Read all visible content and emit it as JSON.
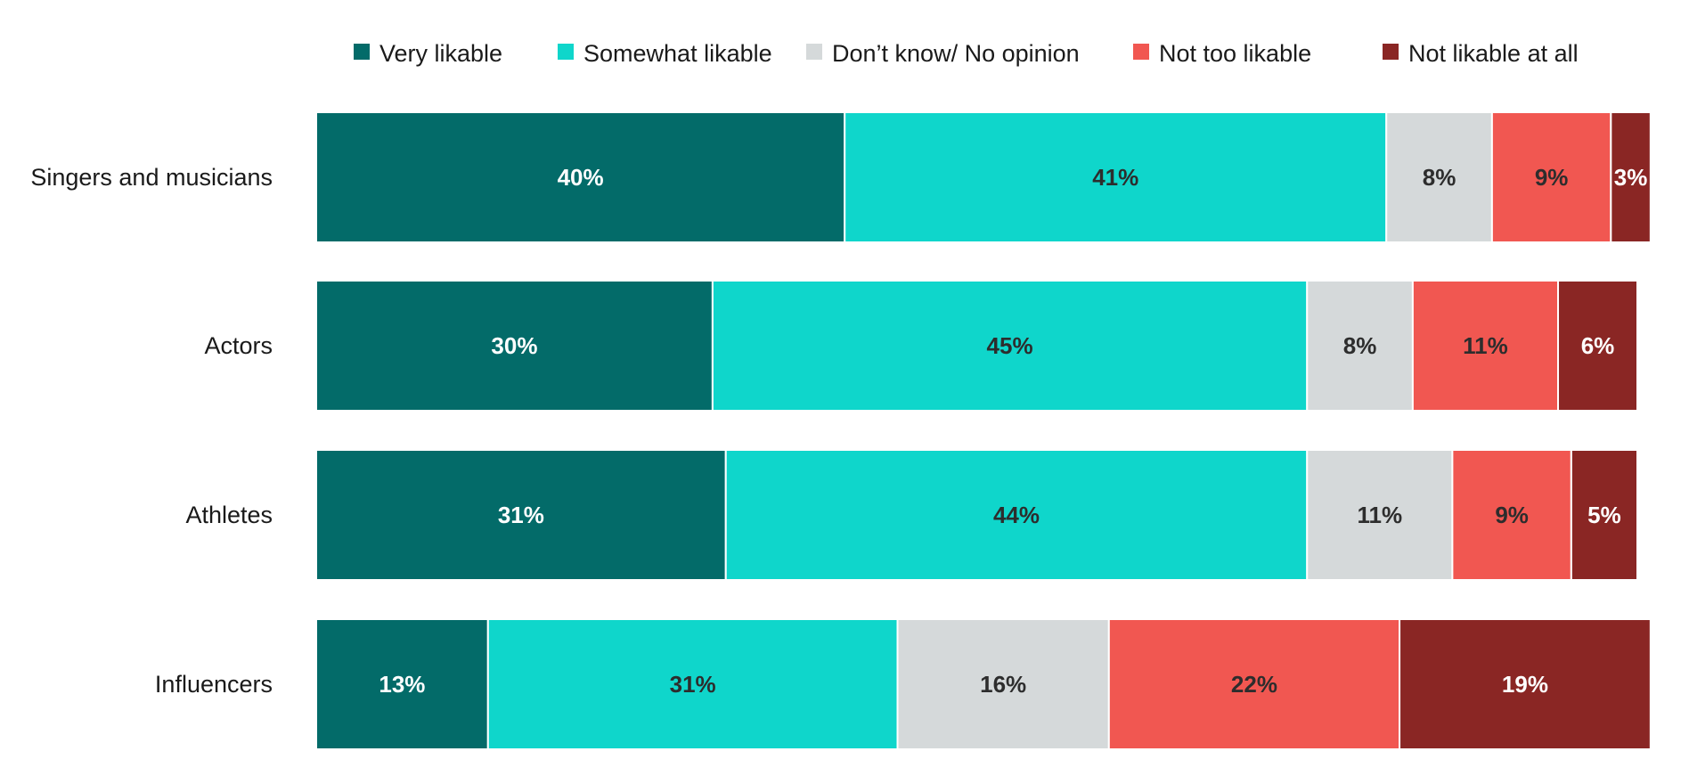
{
  "chart_data": {
    "type": "bar",
    "orientation": "horizontal",
    "stacked": true,
    "value_suffix": "%",
    "xlim": [
      0,
      100
    ],
    "grid": false,
    "legend_position": "top",
    "categories": [
      "Singers and musicians",
      "Actors",
      "Athletes",
      "Influencers"
    ],
    "series": [
      {
        "name": "Very likable",
        "color": "#036b69",
        "label_color": "#ffffff",
        "values": [
          40,
          30,
          31,
          13
        ]
      },
      {
        "name": "Somewhat likable",
        "color": "#0fd6cb",
        "label_color": "#2d2d2d",
        "values": [
          41,
          45,
          44,
          31
        ]
      },
      {
        "name": "Don’t know/ No opinion",
        "color": "#d5d9da",
        "label_color": "#2d2d2d",
        "values": [
          8,
          8,
          11,
          16
        ]
      },
      {
        "name": "Not too likable",
        "color": "#f15751",
        "label_color": "#2d2d2d",
        "values": [
          9,
          11,
          9,
          22
        ]
      },
      {
        "name": "Not likable at all",
        "color": "#8a2624",
        "label_color": "#ffffff",
        "values": [
          3,
          6,
          5,
          19
        ]
      }
    ]
  }
}
